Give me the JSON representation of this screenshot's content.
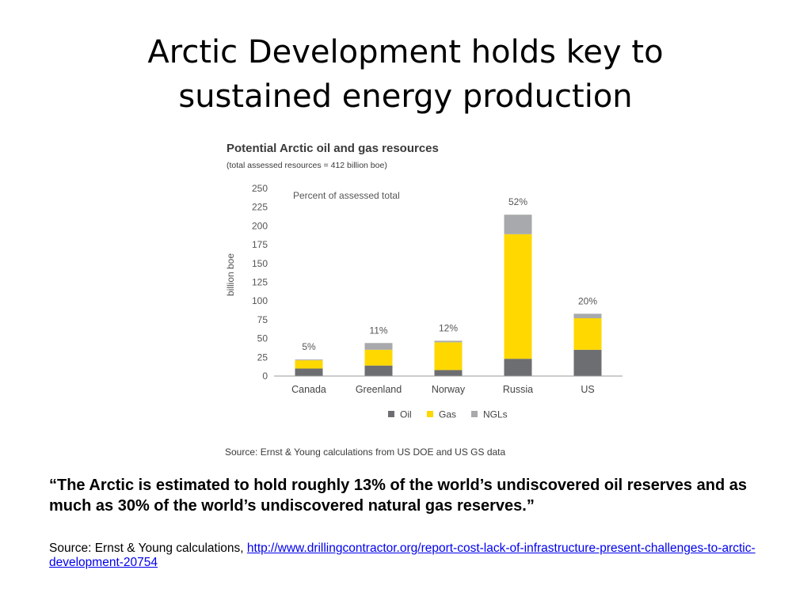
{
  "slide": {
    "title_line1": "Arctic Development holds key to",
    "title_line2": "sustained energy production",
    "quote": "“The Arctic is estimated to hold roughly 13% of the world’s undiscovered oil reserves and as much as 30% of the world’s undiscovered natural gas reserves.”",
    "source_prefix": "Source: Ernst & Young calculations, ",
    "source_link": "http://www.drillingcontractor.org/report-cost-lack-of-infrastructure-present-challenges-to-arctic-development-20754"
  },
  "chart_data": {
    "type": "bar",
    "stacked": true,
    "title": "Potential Arctic oil and gas resources",
    "subtitle": "(total assessed resources = 412 billion boe)",
    "annotation": "Percent of assessed total",
    "ylabel": "billion boe",
    "xlabel": "",
    "ylim": [
      0,
      250
    ],
    "yticks": [
      0,
      25,
      50,
      75,
      100,
      125,
      150,
      175,
      200,
      225,
      250
    ],
    "categories": [
      "Canada",
      "Greenland",
      "Norway",
      "Russia",
      "US"
    ],
    "series": [
      {
        "name": "Oil",
        "color": "#6d6e71",
        "values": [
          10,
          14,
          8,
          23,
          35
        ]
      },
      {
        "name": "Gas",
        "color": "#ffd800",
        "values": [
          11,
          21,
          37,
          166,
          42
        ]
      },
      {
        "name": "NGLs",
        "color": "#a7a9ac",
        "values": [
          1,
          9,
          2,
          26,
          6
        ]
      }
    ],
    "percent_labels": [
      "5%",
      "11%",
      "12%",
      "52%",
      "20%"
    ],
    "legend_position": "bottom",
    "grid": false,
    "source": "Source: Ernst & Young calculations from US DOE and US GS data"
  }
}
